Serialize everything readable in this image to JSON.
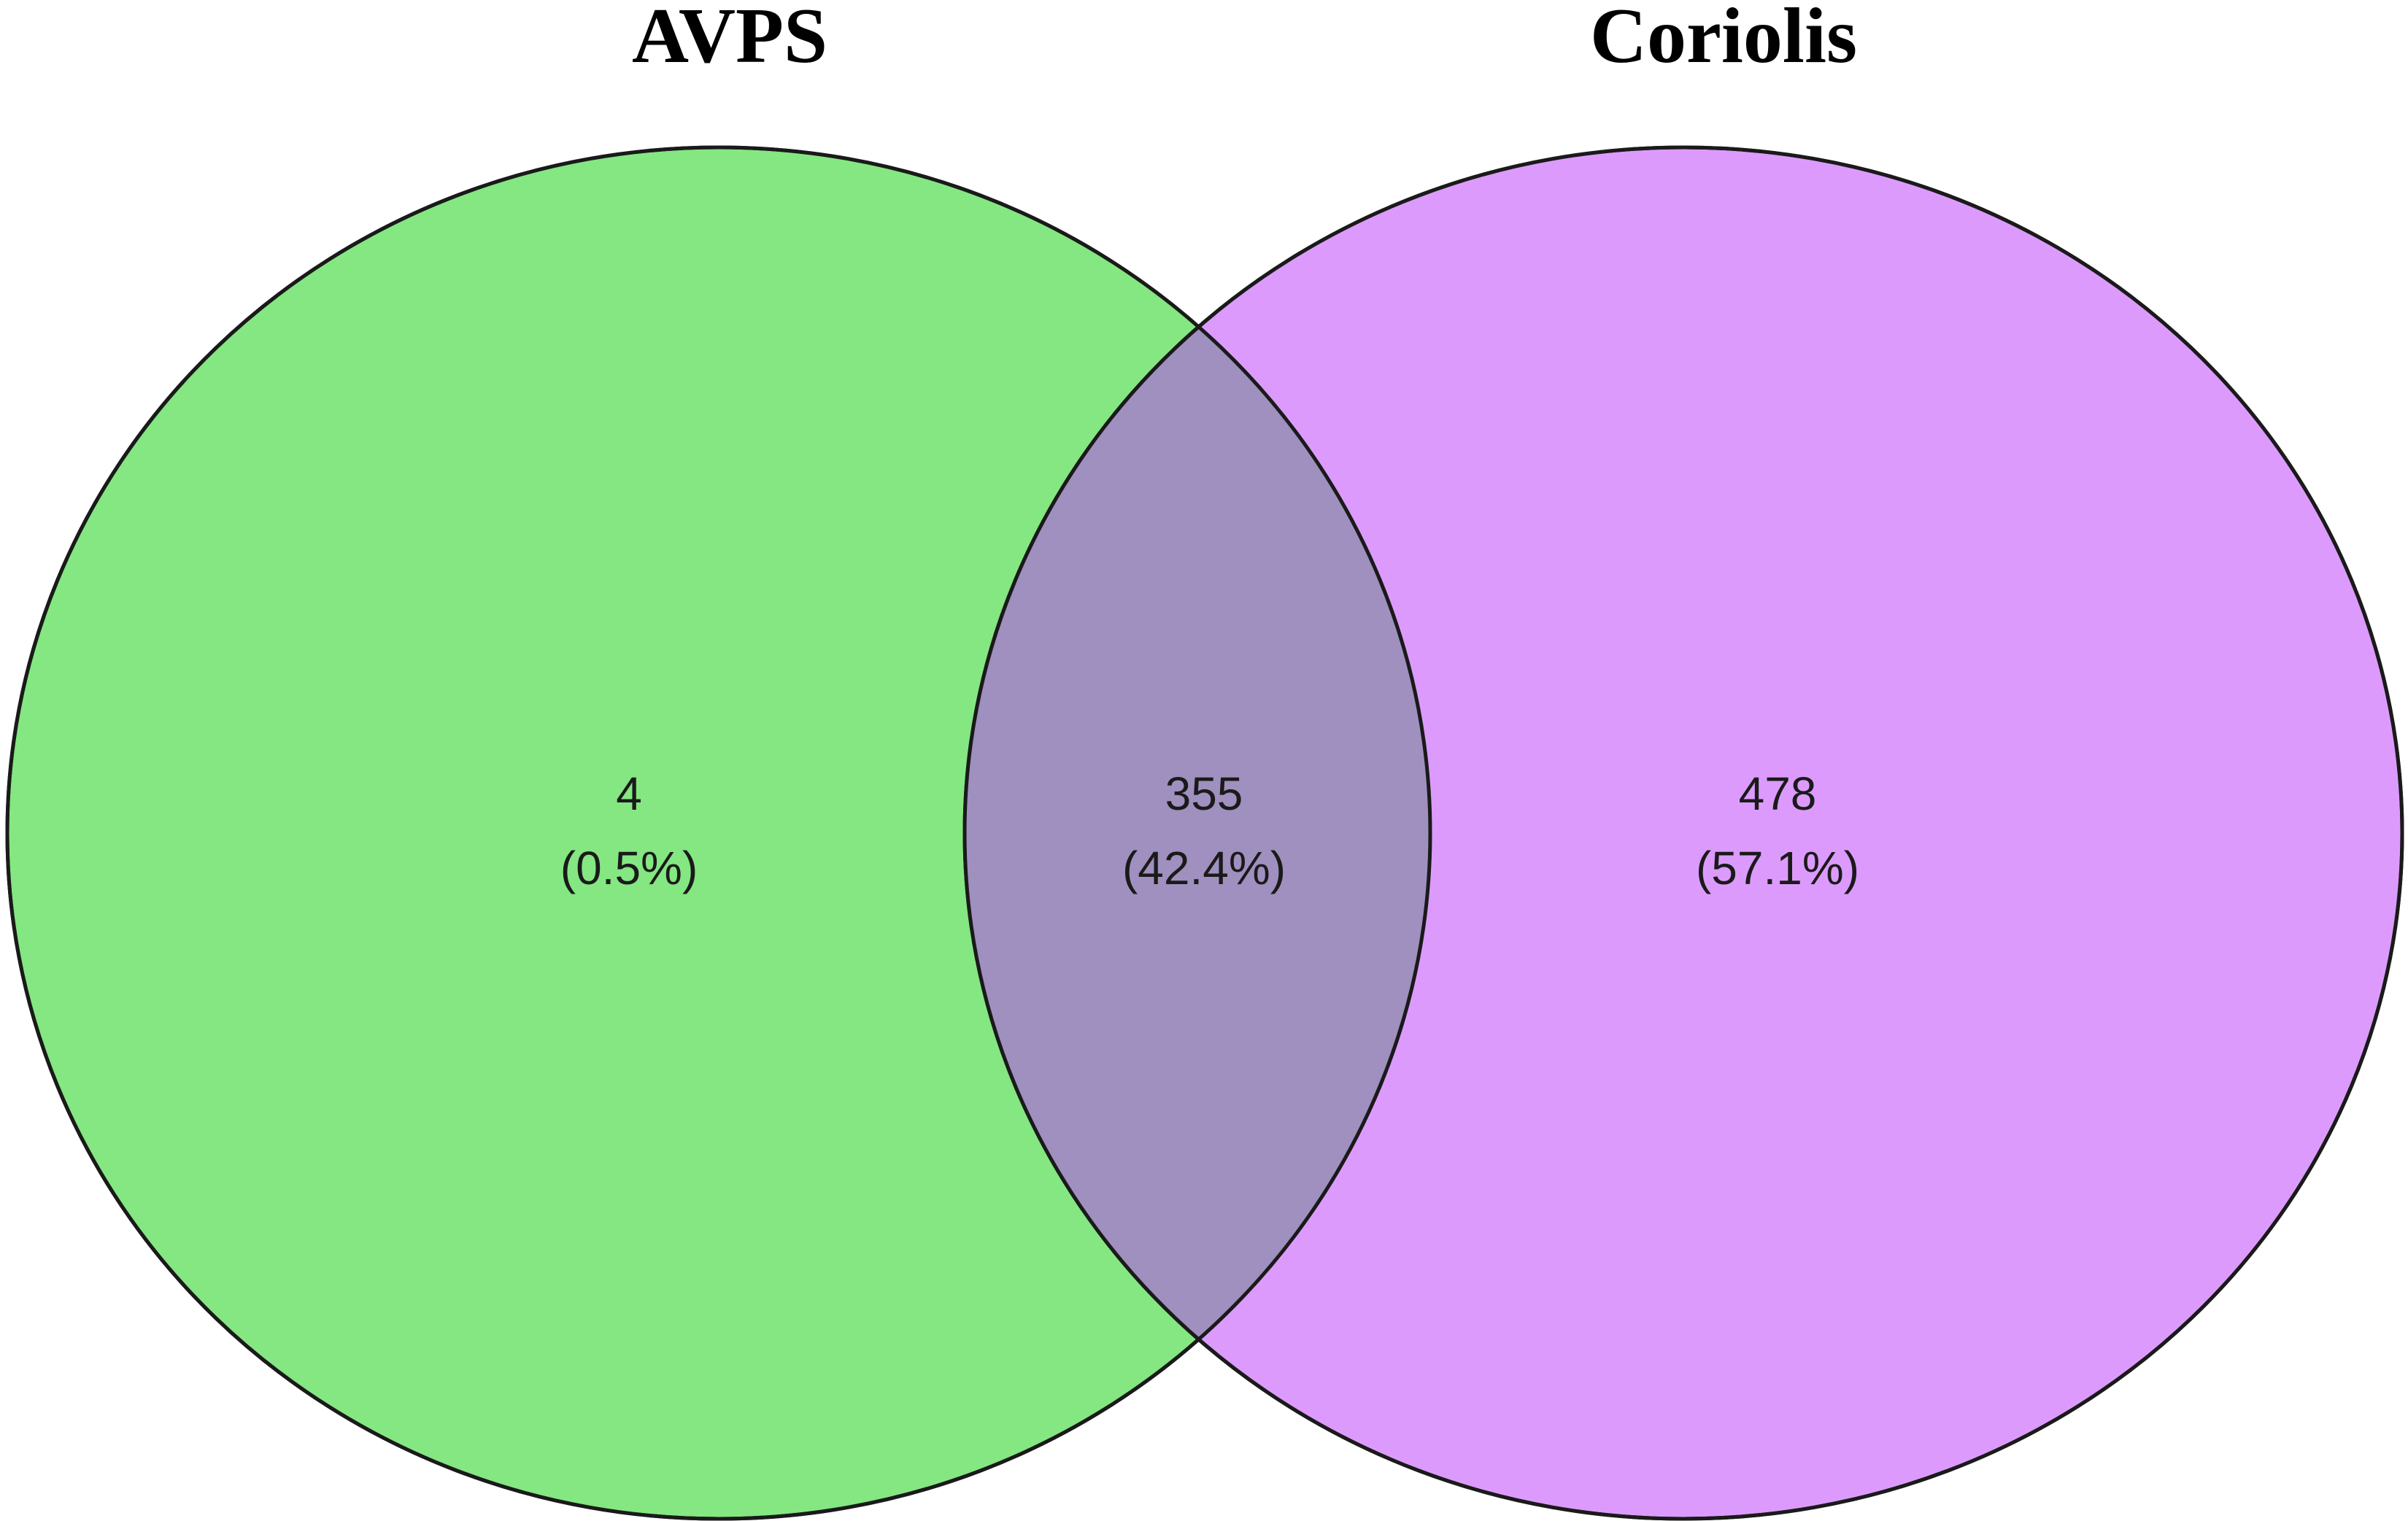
{
  "sets": [
    {
      "name": "AVPS",
      "fill_color": "#84e782"
    },
    {
      "name": "Coriolis",
      "fill_color": "#dc9bfc"
    }
  ],
  "overlap_color": "#9f90bf",
  "regions": [
    {
      "label": "AVPS only",
      "count": "4",
      "percent": "(0.5%)"
    },
    {
      "label": "AVPS and Coriolis",
      "count": "355",
      "percent": "(42.4%)"
    },
    {
      "label": "Coriolis only",
      "count": "478",
      "percent": "(57.1%)"
    }
  ]
}
